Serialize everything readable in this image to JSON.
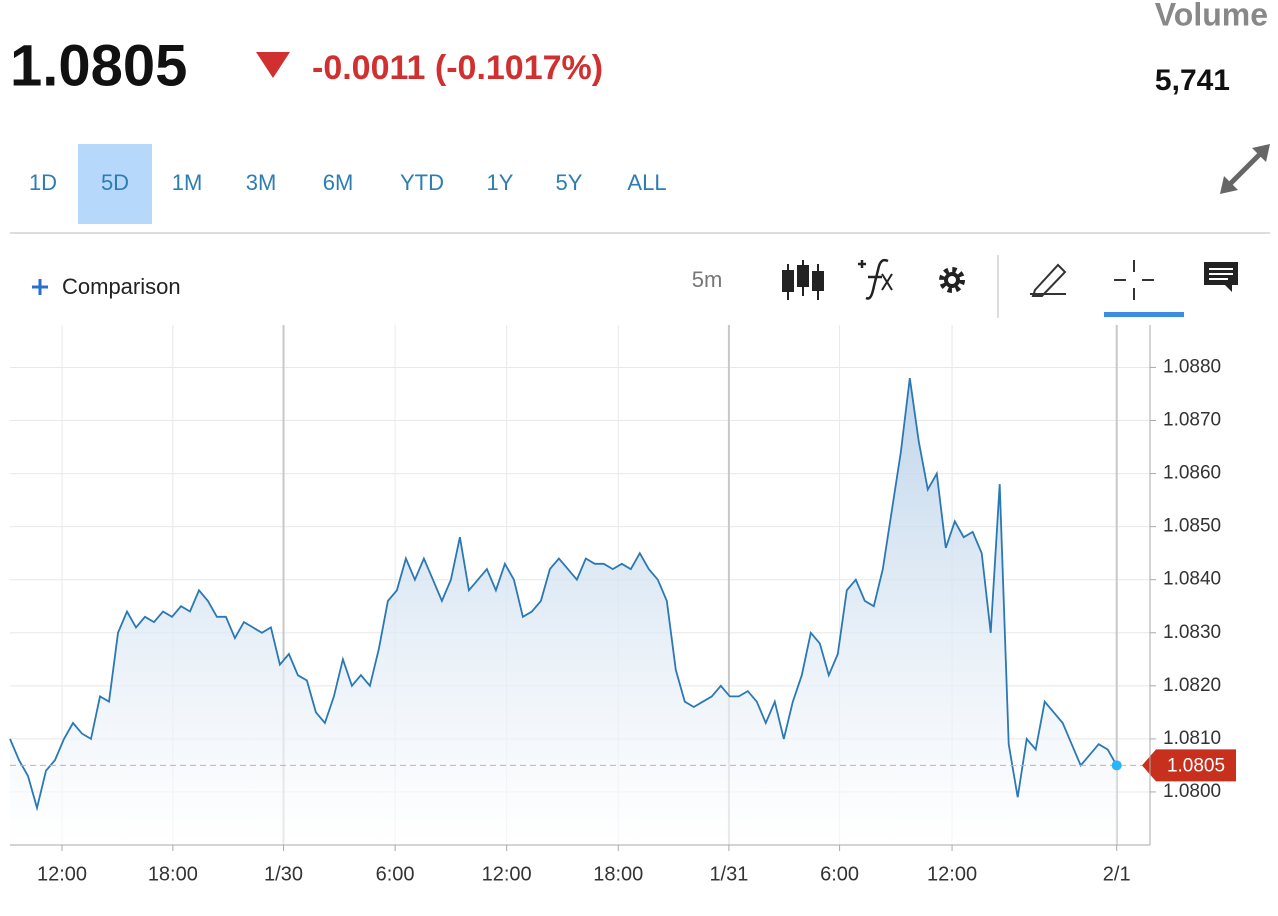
{
  "header": {
    "price": "1.0805",
    "change": "-0.0011 (-0.1017%)",
    "volume_label": "Volume",
    "volume": "5,741"
  },
  "ranges": [
    "1D",
    "5D",
    "1M",
    "3M",
    "6M",
    "YTD",
    "1Y",
    "5Y",
    "ALL"
  ],
  "selected_range": "5D",
  "toolbar": {
    "comparison": "Comparison",
    "interval": "5m"
  },
  "chart_data": {
    "type": "area",
    "color": "#2a78b5",
    "grid": true,
    "values": [
      1.081,
      1.0806,
      1.0803,
      1.0797,
      1.0804,
      1.0806,
      1.081,
      1.0813,
      1.0811,
      1.081,
      1.0818,
      1.0817,
      1.083,
      1.0834,
      1.0831,
      1.0833,
      1.0832,
      1.0834,
      1.0833,
      1.0835,
      1.0834,
      1.0838,
      1.0836,
      1.0833,
      1.0833,
      1.0829,
      1.0832,
      1.0831,
      1.083,
      1.0831,
      1.0824,
      1.0826,
      1.0822,
      1.0821,
      1.0815,
      1.0813,
      1.0818,
      1.0825,
      1.082,
      1.0822,
      1.082,
      1.0827,
      1.0836,
      1.0838,
      1.0844,
      1.084,
      1.0844,
      1.084,
      1.0836,
      1.084,
      1.0848,
      1.0838,
      1.084,
      1.0842,
      1.0838,
      1.0843,
      1.084,
      1.0833,
      1.0834,
      1.0836,
      1.0842,
      1.0844,
      1.0842,
      1.084,
      1.0844,
      1.0843,
      1.0843,
      1.0842,
      1.0843,
      1.0842,
      1.0845,
      1.0842,
      1.084,
      1.0836,
      1.0823,
      1.0817,
      1.0816,
      1.0817,
      1.0818,
      1.082,
      1.0818,
      1.0818,
      1.0819,
      1.0817,
      1.0813,
      1.0817,
      1.081,
      1.0817,
      1.0822,
      1.083,
      1.0828,
      1.0822,
      1.0826,
      1.0838,
      1.084,
      1.0836,
      1.0835,
      1.0842,
      1.0853,
      1.0864,
      1.0878,
      1.0866,
      1.0857,
      1.086,
      1.0846,
      1.0851,
      1.0848,
      1.0849,
      1.0845,
      1.083,
      1.0858,
      1.0809,
      1.0799,
      1.081,
      1.0808,
      1.0817,
      1.0815,
      1.0813,
      1.0809,
      1.0805,
      1.0807,
      1.0809,
      1.0808,
      1.0805
    ],
    "last_price": 1.0805,
    "xlim": [
      0,
      126.7
    ],
    "xticks": [
      {
        "value": 5.78,
        "label": "12:00"
      },
      {
        "value": 18.1,
        "label": "18:00"
      },
      {
        "value": 30.4,
        "label": "1/30"
      },
      {
        "value": 42.8,
        "label": "6:00"
      },
      {
        "value": 55.2,
        "label": "12:00"
      },
      {
        "value": 67.6,
        "label": "18:00"
      },
      {
        "value": 79.9,
        "label": "1/31"
      },
      {
        "value": 92.2,
        "label": "6:00"
      },
      {
        "value": 104.7,
        "label": "12:00"
      },
      {
        "value": 123,
        "label": "2/1"
      }
    ],
    "ylim": [
      1.079,
      1.0888
    ],
    "yticks": [
      {
        "value": 1.08,
        "label": "1.0800"
      },
      {
        "value": 1.081,
        "label": "1.0810"
      },
      {
        "value": 1.082,
        "label": "1.0820"
      },
      {
        "value": 1.083,
        "label": "1.0830"
      },
      {
        "value": 1.084,
        "label": "1.0840"
      },
      {
        "value": 1.085,
        "label": "1.0850"
      },
      {
        "value": 1.086,
        "label": "1.0860"
      },
      {
        "value": 1.087,
        "label": "1.0870"
      },
      {
        "value": 1.088,
        "label": "1.0880"
      }
    ]
  }
}
